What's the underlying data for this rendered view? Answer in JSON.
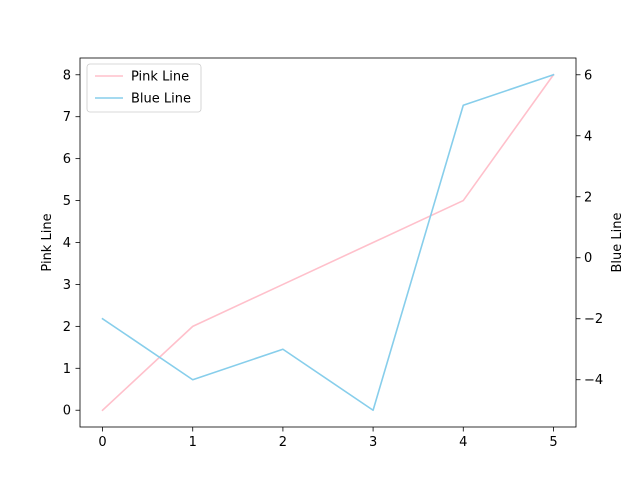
{
  "chart_data": {
    "type": "line",
    "title": "",
    "xlabel": "",
    "ylabel_left": "Pink Line",
    "ylabel_right": "Blue Line",
    "x": [
      0,
      1,
      2,
      3,
      4,
      5
    ],
    "xlim": [
      -0.25,
      5.25
    ],
    "x_ticks": [
      "0",
      "1",
      "2",
      "3",
      "4",
      "5"
    ],
    "ylim_left": [
      -0.4,
      8.4
    ],
    "y_ticks_left": [
      "0",
      "1",
      "2",
      "3",
      "4",
      "5",
      "6",
      "7",
      "8"
    ],
    "ylim_right": [
      -5.55,
      6.55
    ],
    "y_ticks_right": [
      "−4",
      "−2",
      "0",
      "2",
      "4",
      "6"
    ],
    "grid": false,
    "legend_placement": "upper-left",
    "series": [
      {
        "name": "Pink Line",
        "axis": "left",
        "color": "#ffc0cb",
        "values": [
          0,
          2,
          3,
          4,
          5,
          8
        ]
      },
      {
        "name": "Blue Line",
        "axis": "right",
        "color": "#87ceeb",
        "values": [
          -2,
          -4,
          -3,
          -5,
          5,
          6
        ]
      }
    ]
  }
}
